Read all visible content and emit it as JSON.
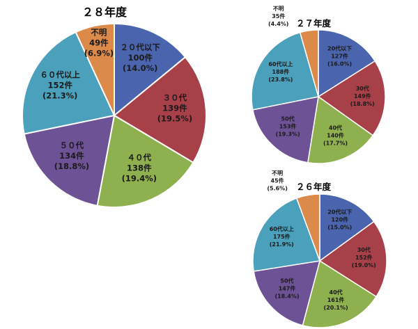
{
  "chart_data": [
    {
      "type": "pie",
      "title": "２８年度",
      "slices": [
        {
          "label": "２０代以下",
          "count": "100件",
          "pct": "(14.0%)",
          "value": 100,
          "color": "#4a64ad"
        },
        {
          "label": "３０代",
          "count": "139件",
          "pct": "(19.5%)",
          "value": 139,
          "color": "#a8404a"
        },
        {
          "label": "４０代",
          "count": "138件",
          "pct": "(19.4%)",
          "value": 138,
          "color": "#8fb04e"
        },
        {
          "label": "５０代",
          "count": "134件",
          "pct": "(18.8%)",
          "value": 134,
          "color": "#6e5296"
        },
        {
          "label": "６０代以上",
          "count": "152件",
          "pct": "(21.3%)",
          "value": 152,
          "color": "#4ba0bb"
        },
        {
          "label": "不明",
          "count": "49件",
          "pct": "(6.9%)",
          "value": 49,
          "color": "#dc8a4a"
        }
      ]
    },
    {
      "type": "pie",
      "title": "２７年度",
      "slices": [
        {
          "label": "20代以下",
          "count": "127件",
          "pct": "(16.0%)",
          "value": 127,
          "color": "#4a64ad"
        },
        {
          "label": "30代",
          "count": "149件",
          "pct": "(18.8%)",
          "value": 149,
          "color": "#a8404a"
        },
        {
          "label": "40代",
          "count": "140件",
          "pct": "(17.7%)",
          "value": 140,
          "color": "#8fb04e"
        },
        {
          "label": "50代",
          "count": "153件",
          "pct": "(19.3%)",
          "value": 153,
          "color": "#6e5296"
        },
        {
          "label": "60代以上",
          "count": "188件",
          "pct": "(23.8%)",
          "value": 188,
          "color": "#4ba0bb"
        },
        {
          "label": "不明",
          "count": "35件",
          "pct": "(4.4%)",
          "value": 35,
          "color": "#dc8a4a"
        }
      ]
    },
    {
      "type": "pie",
      "title": "２６年度",
      "slices": [
        {
          "label": "20代以下",
          "count": "120件",
          "pct": "(15.0%)",
          "value": 120,
          "color": "#4a64ad"
        },
        {
          "label": "30代",
          "count": "152件",
          "pct": "(19.0%)",
          "value": 152,
          "color": "#a8404a"
        },
        {
          "label": "40代",
          "count": "161件",
          "pct": "(20.1%)",
          "value": 161,
          "color": "#8fb04e"
        },
        {
          "label": "50代",
          "count": "147件",
          "pct": "(18.4%)",
          "value": 147,
          "color": "#6e5296"
        },
        {
          "label": "60代以上",
          "count": "175件",
          "pct": "(21.9%)",
          "value": 175,
          "color": "#4ba0bb"
        },
        {
          "label": "不明",
          "count": "45件",
          "pct": "(5.6%)",
          "value": 45,
          "color": "#dc8a4a"
        }
      ]
    }
  ]
}
